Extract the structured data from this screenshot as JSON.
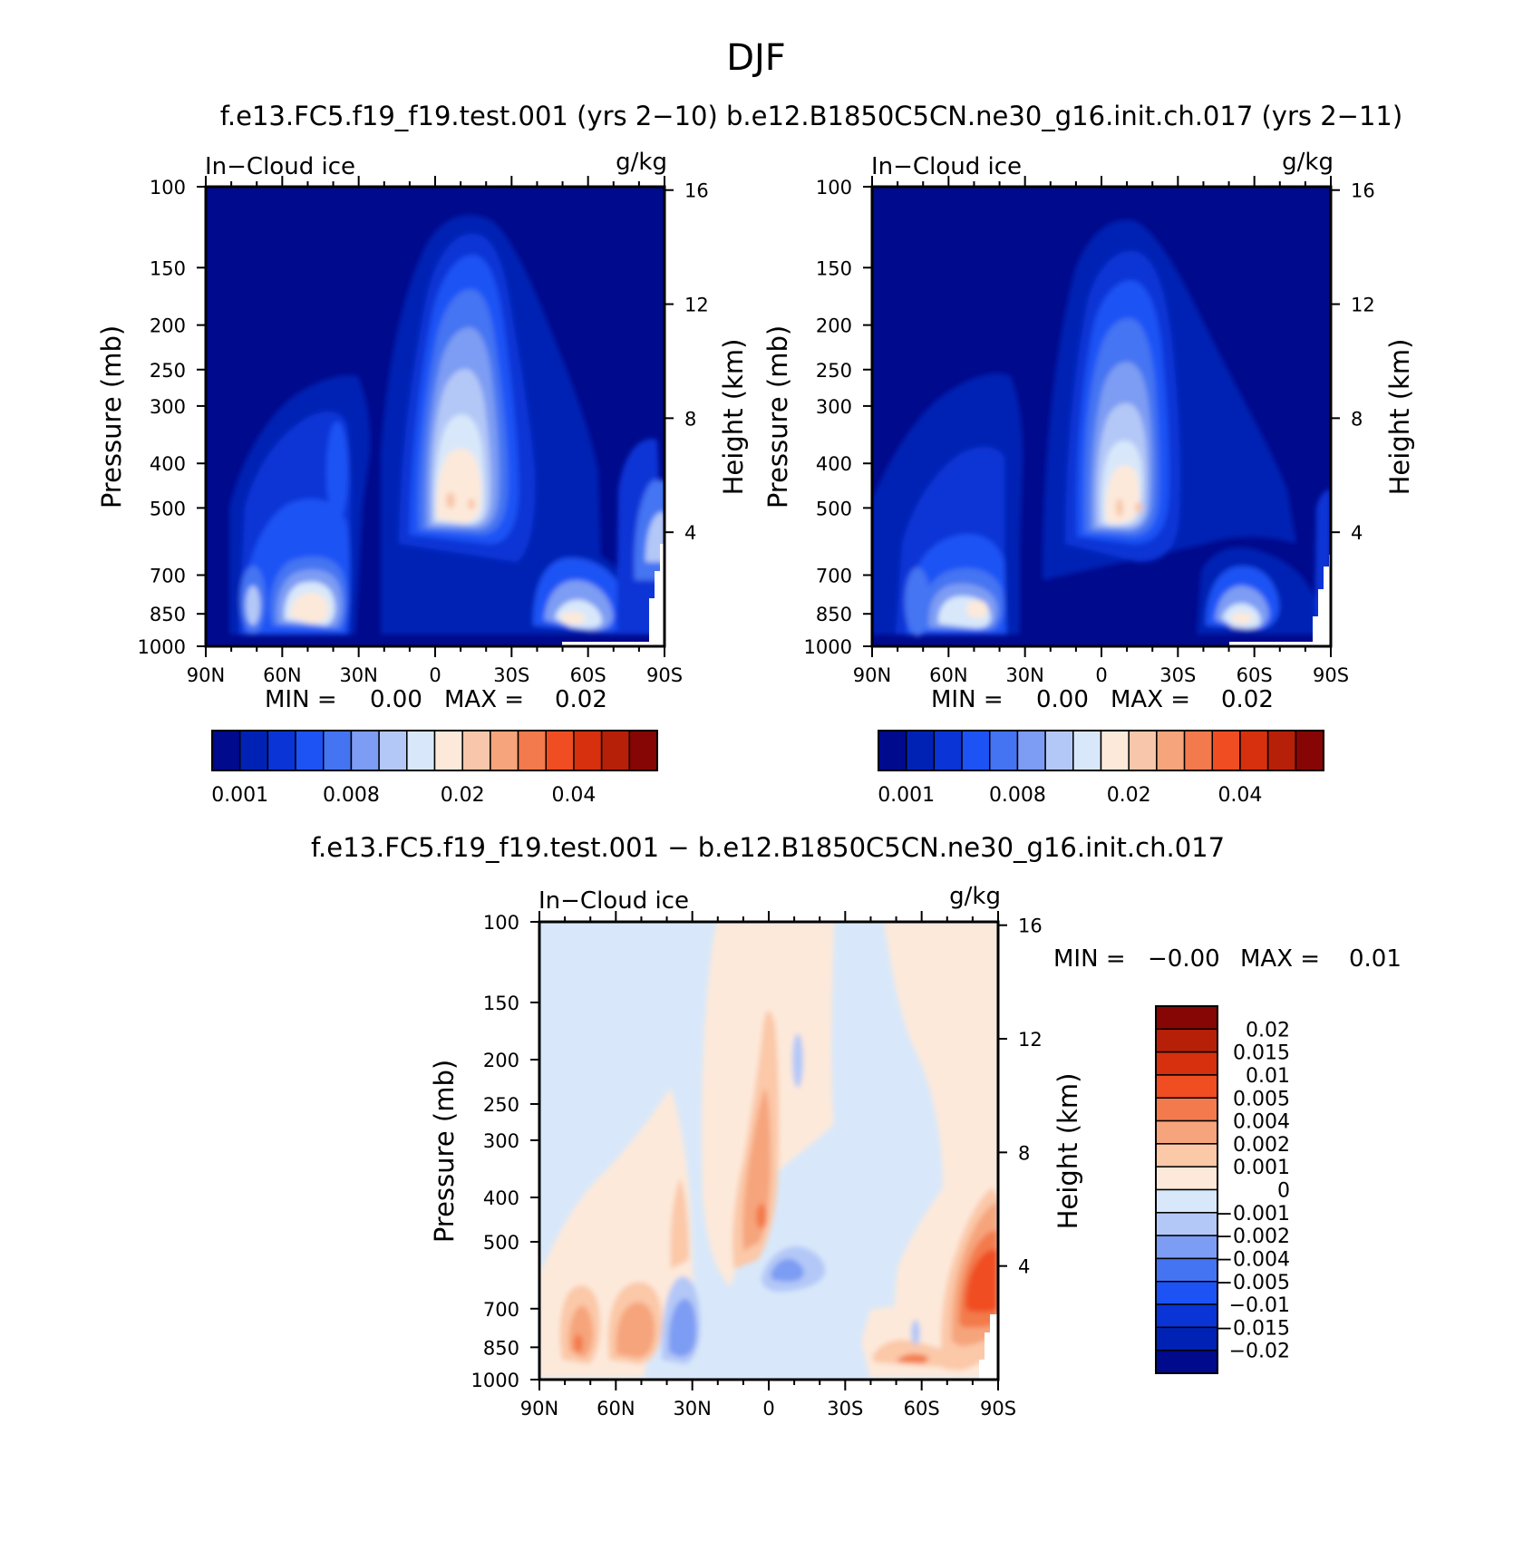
{
  "figure": {
    "title": "DJF",
    "top_subtitle": "f.e13.FC5.f19_f19.test.001 (yrs 2−10) b.e12.B1850C5CN.ne30_g16.init.ch.017 (yrs 2−11)",
    "diff_subtitle": "f.e13.FC5.f19_f19.test.001 − b.e12.B1850C5CN.ne30_g16.init.ch.017"
  },
  "chart_data": [
    {
      "type": "heatmap",
      "id": "panel-left",
      "title": "In−Cloud ice",
      "units": "g/kg",
      "ylabel": "Pressure (mb)",
      "ylabel_right": "Height (km)",
      "x_ticks": [
        "90N",
        "60N",
        "30N",
        "0",
        "30S",
        "60S",
        "90S"
      ],
      "x_values": [
        90,
        60,
        30,
        0,
        -30,
        -60,
        -90
      ],
      "y_ticks": [
        100,
        150,
        200,
        250,
        300,
        400,
        500,
        700,
        850,
        1000
      ],
      "height_ticks": [
        16,
        12,
        8,
        4
      ],
      "ylim": [
        1000,
        100
      ],
      "min_label": "MIN =",
      "min_value": "0.00",
      "max_label": "MAX =",
      "max_value": "0.02",
      "colorbar_labels": [
        "0.001",
        "0.008",
        "0.02",
        "0.04"
      ],
      "features": [
        {
          "lat": 8,
          "p": 480,
          "level": 8
        },
        {
          "lat": 58,
          "p": 800,
          "level": 8
        },
        {
          "lat": -60,
          "p": 880,
          "level": 8
        },
        {
          "lat": 70,
          "p": 820,
          "level": 5
        },
        {
          "lat": -85,
          "p": 600,
          "level": 6
        }
      ]
    },
    {
      "type": "heatmap",
      "id": "panel-right",
      "title": "In−Cloud ice",
      "units": "g/kg",
      "ylabel": "Pressure (mb)",
      "ylabel_right": "Height (km)",
      "x_ticks": [
        "90N",
        "60N",
        "30N",
        "0",
        "30S",
        "60S",
        "90S"
      ],
      "x_values": [
        90,
        60,
        30,
        0,
        -30,
        -60,
        -90
      ],
      "y_ticks": [
        100,
        150,
        200,
        250,
        300,
        400,
        500,
        700,
        850,
        1000
      ],
      "height_ticks": [
        16,
        12,
        8,
        4
      ],
      "ylim": [
        1000,
        100
      ],
      "min_label": "MIN =",
      "min_value": "0.00",
      "max_label": "MAX =",
      "max_value": "0.02",
      "colorbar_labels": [
        "0.001",
        "0.008",
        "0.02",
        "0.04"
      ],
      "features": [
        {
          "lat": 8,
          "p": 480,
          "level": 8
        },
        {
          "lat": 48,
          "p": 800,
          "level": 8
        },
        {
          "lat": -57,
          "p": 880,
          "level": 8
        },
        {
          "lat": 70,
          "p": 820,
          "level": 5
        }
      ]
    },
    {
      "type": "heatmap",
      "id": "panel-diff",
      "title": "In−Cloud ice",
      "units": "g/kg",
      "ylabel": "Pressure (mb)",
      "ylabel_right": "Height (km)",
      "x_ticks": [
        "90N",
        "60N",
        "30N",
        "0",
        "30S",
        "60S",
        "90S"
      ],
      "x_values": [
        90,
        60,
        30,
        0,
        -30,
        -60,
        -90
      ],
      "y_ticks": [
        100,
        150,
        200,
        250,
        300,
        400,
        500,
        700,
        850,
        1000
      ],
      "height_ticks": [
        16,
        12,
        8,
        4
      ],
      "ylim": [
        1000,
        100
      ],
      "min_label": "MIN =",
      "min_value": "−0.00",
      "max_label": "MAX =",
      "max_value": "0.01",
      "colorbar_labels": [
        "0.02",
        "0.015",
        "0.01",
        "0.005",
        "0.004",
        "0.002",
        "0.001",
        "0",
        "−0.001",
        "−0.002",
        "−0.004",
        "−0.005",
        "−0.01",
        "−0.015",
        "−0.02"
      ],
      "features": [
        {
          "lat": 0,
          "p": 420,
          "value": 0.004
        },
        {
          "lat": -85,
          "p": 560,
          "value": 0.01
        },
        {
          "lat": 75,
          "p": 780,
          "value": 0.004
        },
        {
          "lat": 55,
          "p": 760,
          "value": 0.002
        },
        {
          "lat": 35,
          "p": 750,
          "value": -0.004
        },
        {
          "lat": -5,
          "p": 600,
          "value": -0.004
        },
        {
          "lat": -60,
          "p": 900,
          "value": 0.004
        }
      ]
    }
  ],
  "colors": {
    "seq": [
      "#000a8c",
      "#0022b4",
      "#0a34d6",
      "#1d52f5",
      "#4574f2",
      "#7d9cf3",
      "#b4c8f7",
      "#d8e8fa",
      "#fde9da",
      "#f8c6aa",
      "#f6a47c",
      "#f37a4c",
      "#f04d22",
      "#d6300e",
      "#b72008",
      "#850604"
    ],
    "diff": [
      "#850604",
      "#b72008",
      "#d6300e",
      "#f04d22",
      "#f37a4c",
      "#f6a47c",
      "#fbc8a8",
      "#fde9da",
      "#d8e8fa",
      "#b4c8f7",
      "#7d9cf3",
      "#4574f2",
      "#1d52f5",
      "#0a34d6",
      "#0022b4",
      "#000a8c"
    ]
  }
}
